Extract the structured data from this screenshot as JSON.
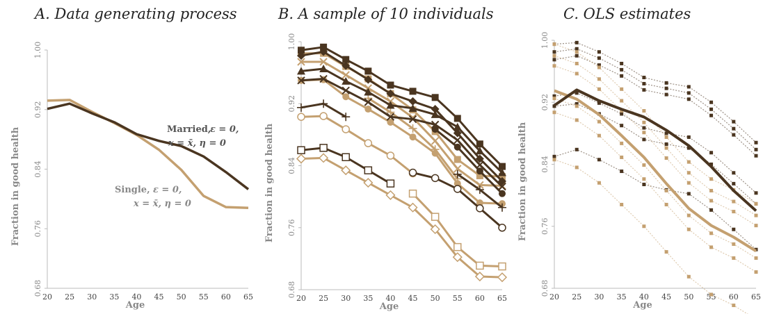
{
  "colors": {
    "married": "#4a3520",
    "single": "#c4a070"
  },
  "panels": {
    "a": {
      "title": "A. Data generating process"
    },
    "b": {
      "title": "B. A sample of 10 individuals"
    },
    "c": {
      "title": "C. OLS estimates"
    }
  },
  "annotations": {
    "married_name": "Married,",
    "married_line1": "ε = 0,",
    "married_line2": "x = x̄, η = 0",
    "single_name": "Single,",
    "single_line1": "ε = 0,",
    "single_line2": "x = x̄, η = 0"
  },
  "chart_data": [
    {
      "type": "line",
      "title": "A. Data generating process",
      "xlabel": "Age",
      "ylabel": "Fraction in good health",
      "x": [
        20,
        25,
        30,
        35,
        40,
        45,
        50,
        55,
        60,
        65
      ],
      "xlim": [
        20,
        65
      ],
      "ylim": [
        0.68,
        1.0
      ],
      "yticks": [
        "0.68",
        "0.76",
        "0.84",
        "0.92",
        "1.00"
      ],
      "series": [
        {
          "name": "Married",
          "group": "married",
          "values": [
            0.921,
            0.928,
            0.915,
            0.903,
            0.887,
            0.878,
            0.871,
            0.857,
            0.836,
            0.813
          ]
        },
        {
          "name": "Single",
          "group": "single",
          "values": [
            0.932,
            0.933,
            0.917,
            0.902,
            0.886,
            0.866,
            0.839,
            0.804,
            0.789,
            0.788
          ]
        }
      ]
    },
    {
      "type": "line",
      "title": "B. A sample of 10 individuals",
      "xlabel": "Age",
      "ylabel": "Fraction in good health",
      "x": [
        20,
        25,
        30,
        35,
        40,
        45,
        50,
        55,
        60,
        65
      ],
      "xlim": [
        20,
        65
      ],
      "ylim": [
        0.68,
        1.0
      ],
      "yticks": [
        "0.68",
        "0.76",
        "0.84",
        "0.92",
        "1.00"
      ],
      "series": [
        {
          "group": "married",
          "marker": "square-filled",
          "values": [
            0.989,
            0.993,
            0.977,
            0.962,
            0.944,
            0.936,
            0.928,
            0.901,
            0.868,
            0.839
          ]
        },
        {
          "group": "married",
          "marker": "diamond-filled",
          "values": [
            0.982,
            0.987,
            0.969,
            0.951,
            0.933,
            0.923,
            0.913,
            0.882,
            0.849,
            0.82
          ]
        },
        {
          "group": "married",
          "marker": "triangle-filled",
          "values": [
            0.962,
            0.965,
            0.949,
            0.935,
            0.918,
            0.914,
            0.906,
            0.89,
            0.859,
            0.831
          ]
        },
        {
          "group": "married",
          "marker": "x",
          "values": [
            0.95,
            0.952,
            0.937,
            0.922,
            0.903,
            0.9,
            0.893,
            0.873,
            0.841,
            0.813
          ]
        },
        {
          "group": "married",
          "marker": "plus",
          "values": [
            0.915,
            0.92,
            0.903,
            null,
            null,
            null,
            null,
            null,
            null,
            null
          ]
        },
        {
          "group": "married",
          "marker": "square-open",
          "values": [
            0.86,
            0.863,
            0.851,
            0.834,
            0.817,
            null,
            null,
            null,
            null,
            null
          ]
        },
        {
          "group": "married",
          "marker": "circle-open",
          "values": [
            null,
            null,
            null,
            null,
            null,
            0.831,
            0.824,
            0.81,
            0.785,
            0.76
          ]
        },
        {
          "group": "married",
          "marker": "plus",
          "values": [
            null,
            null,
            null,
            null,
            null,
            null,
            null,
            0.829,
            0.809,
            0.786
          ]
        },
        {
          "group": "married",
          "marker": "circle-filled",
          "values": [
            null,
            null,
            null,
            null,
            null,
            null,
            0.887,
            0.864,
            0.833,
            0.804
          ]
        },
        {
          "group": "single",
          "marker": "circle-filled",
          "values": [
            0.95,
            0.951,
            0.929,
            0.913,
            0.896,
            0.877,
            0.856,
            0.817,
            0.792,
            0.791
          ]
        },
        {
          "group": "single",
          "marker": "x",
          "values": [
            0.974,
            0.974,
            0.957,
            0.94,
            0.923,
            0.902,
            0.872,
            0.836,
            0.815,
            0.814
          ]
        },
        {
          "group": "single",
          "marker": "square-filled",
          "values": [
            0.985,
            0.985,
            0.968,
            0.952,
            0.933,
            0.912,
            0.884,
            0.848,
            0.827,
            0.826
          ]
        },
        {
          "group": "single",
          "marker": "plus",
          "values": [
            null,
            null,
            null,
            0.927,
            0.909,
            0.888,
            0.861,
            0.823,
            null,
            null
          ]
        },
        {
          "group": "single",
          "marker": "circle-open",
          "values": [
            0.903,
            0.904,
            0.887,
            0.869,
            0.853,
            0.83,
            null,
            null,
            null,
            null
          ]
        },
        {
          "group": "single",
          "marker": "square-open",
          "values": [
            null,
            null,
            null,
            null,
            null,
            0.804,
            0.774,
            0.735,
            0.711,
            0.71
          ]
        },
        {
          "group": "single",
          "marker": "diamond-open",
          "values": [
            0.849,
            0.85,
            0.834,
            0.818,
            0.802,
            0.786,
            0.758,
            0.722,
            0.697,
            0.696
          ]
        }
      ]
    },
    {
      "type": "line",
      "title": "C. OLS estimates",
      "xlabel": "Age",
      "ylabel": "Fraction in good health",
      "x": [
        20,
        25,
        30,
        35,
        40,
        45,
        50,
        55,
        60,
        65
      ],
      "xlim": [
        20,
        65
      ],
      "ylim": [
        0.68,
        1.0
      ],
      "yticks": [
        "0.68",
        "0.76",
        "0.84",
        "0.92",
        "1.00"
      ],
      "series": [
        {
          "name": "Married",
          "group": "married",
          "values": [
            0.916,
            0.936,
            0.922,
            0.911,
            0.901,
            0.884,
            0.864,
            0.837,
            0.806,
            0.78
          ]
        },
        {
          "name": "Single",
          "group": "single",
          "values": [
            0.935,
            0.924,
            0.904,
            0.877,
            0.849,
            0.815,
            0.783,
            0.761,
            0.746,
            0.728
          ]
        }
      ],
      "fitted": [
        {
          "group": "married",
          "values": [
            0.995,
            0.997,
            0.985,
            0.97,
            0.952,
            0.945,
            0.94,
            0.92,
            0.895,
            0.868
          ]
        },
        {
          "group": "married",
          "values": [
            0.985,
            0.989,
            0.977,
            0.962,
            0.944,
            0.938,
            0.932,
            0.911,
            0.886,
            0.859
          ]
        },
        {
          "group": "married",
          "values": [
            0.975,
            0.98,
            0.968,
            0.954,
            0.936,
            0.93,
            0.924,
            0.903,
            0.878,
            0.851
          ]
        },
        {
          "group": "married",
          "values": [
            0.928,
            0.932,
            0.919,
            0.905,
            0.887,
            0.88,
            0.875,
            0.855,
            0.829,
            0.803
          ]
        },
        {
          "group": "married",
          "values": [
            0.915,
            0.918,
            0.905,
            0.89,
            0.872,
            0.866,
            0.861,
            0.84,
            0.815,
            0.789
          ]
        },
        {
          "group": "married",
          "values": [
            0.85,
            0.859,
            0.846,
            0.831,
            0.814,
            0.807,
            0.802,
            0.781,
            0.756,
            0.73
          ]
        },
        {
          "group": "single",
          "values": [
            0.995,
            0.985,
            0.965,
            0.937,
            0.909,
            0.875,
            0.843,
            0.821,
            0.807,
            0.789
          ]
        },
        {
          "group": "single",
          "values": [
            0.98,
            0.97,
            0.95,
            0.922,
            0.894,
            0.861,
            0.829,
            0.806,
            0.792,
            0.774
          ]
        },
        {
          "group": "single",
          "values": [
            0.967,
            0.957,
            0.937,
            0.909,
            0.881,
            0.848,
            0.816,
            0.793,
            0.779,
            0.761
          ]
        },
        {
          "group": "single",
          "values": [
            0.925,
            0.915,
            0.895,
            0.867,
            0.839,
            0.806,
            0.774,
            0.751,
            0.737,
            0.719
          ]
        },
        {
          "group": "single",
          "values": [
            0.907,
            0.897,
            0.877,
            0.849,
            0.821,
            0.788,
            0.756,
            0.733,
            0.719,
            0.701
          ]
        },
        {
          "group": "single",
          "values": [
            0.846,
            0.836,
            0.816,
            0.788,
            0.76,
            0.727,
            0.695,
            0.672,
            0.658,
            0.64
          ]
        }
      ]
    }
  ]
}
